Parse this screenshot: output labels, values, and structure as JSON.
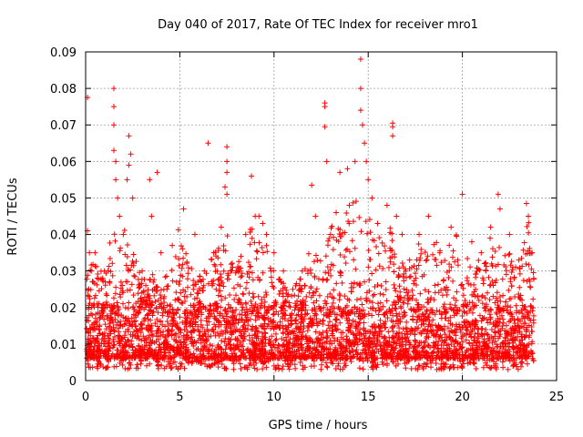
{
  "chart_data": {
    "type": "scatter",
    "title": "Day 040 of 2017, Rate Of TEC Index for receiver mro1",
    "xlabel": "GPS time / hours",
    "ylabel": "ROTI / TECUs",
    "xlim": [
      0,
      25
    ],
    "ylim": [
      0,
      0.09
    ],
    "xticks": [
      0,
      5,
      10,
      15,
      20,
      25
    ],
    "xtick_labels": [
      "0",
      "5",
      "10",
      "15",
      "20",
      "25"
    ],
    "yticks": [
      0,
      0.01,
      0.02,
      0.03,
      0.04,
      0.05,
      0.06,
      0.07,
      0.08,
      0.09
    ],
    "ytick_labels": [
      "0",
      "0.01",
      "0.02",
      "0.03",
      "0.04",
      "0.05",
      "0.06",
      "0.07",
      "0.08",
      "0.09"
    ],
    "grid": true,
    "marker": "+",
    "color": "#ff0000",
    "series": [
      {
        "name": "ROTI",
        "points": [
          [
            0.1,
            0.0775
          ],
          [
            0.1,
            0.041
          ],
          [
            0.2,
            0.035
          ],
          [
            0.3,
            0.03
          ],
          [
            0.4,
            0.027
          ],
          [
            1.5,
            0.08
          ],
          [
            1.5,
            0.075
          ],
          [
            1.5,
            0.07
          ],
          [
            1.5,
            0.063
          ],
          [
            1.6,
            0.06
          ],
          [
            1.6,
            0.055
          ],
          [
            1.7,
            0.05
          ],
          [
            1.8,
            0.045
          ],
          [
            2.3,
            0.067
          ],
          [
            2.4,
            0.062
          ],
          [
            2.3,
            0.059
          ],
          [
            2.2,
            0.055
          ],
          [
            2.5,
            0.05
          ],
          [
            3.4,
            0.055
          ],
          [
            3.5,
            0.045
          ],
          [
            3.8,
            0.057
          ],
          [
            6.5,
            0.065
          ],
          [
            7.5,
            0.064
          ],
          [
            7.5,
            0.06
          ],
          [
            7.5,
            0.057
          ],
          [
            7.4,
            0.053
          ],
          [
            7.5,
            0.051
          ],
          [
            8.8,
            0.056
          ],
          [
            9.2,
            0.045
          ],
          [
            9.4,
            0.043
          ],
          [
            12.0,
            0.0535
          ],
          [
            12.7,
            0.076
          ],
          [
            12.7,
            0.075
          ],
          [
            12.7,
            0.0695
          ],
          [
            12.8,
            0.06
          ],
          [
            13.5,
            0.057
          ],
          [
            13.9,
            0.058
          ],
          [
            14.3,
            0.06
          ],
          [
            14.6,
            0.088
          ],
          [
            14.6,
            0.08
          ],
          [
            14.6,
            0.074
          ],
          [
            14.7,
            0.07
          ],
          [
            14.8,
            0.065
          ],
          [
            14.9,
            0.06
          ],
          [
            15.0,
            0.055
          ],
          [
            15.2,
            0.05
          ],
          [
            16.3,
            0.0705
          ],
          [
            16.3,
            0.0695
          ],
          [
            16.3,
            0.067
          ],
          [
            16.0,
            0.048
          ],
          [
            16.5,
            0.045
          ],
          [
            20.0,
            0.051
          ],
          [
            21.9,
            0.051
          ],
          [
            22.0,
            0.047
          ],
          [
            23.4,
            0.0485
          ],
          [
            23.5,
            0.045
          ],
          [
            0.5,
            0.035
          ],
          [
            1.0,
            0.03
          ],
          [
            2.0,
            0.04
          ],
          [
            3.0,
            0.03
          ],
          [
            4.0,
            0.035
          ],
          [
            4.6,
            0.037
          ],
          [
            5.2,
            0.047
          ],
          [
            5.8,
            0.04
          ],
          [
            6.3,
            0.03
          ],
          [
            6.8,
            0.035
          ],
          [
            7.2,
            0.042
          ],
          [
            8.0,
            0.03
          ],
          [
            8.5,
            0.04
          ],
          [
            9.0,
            0.045
          ],
          [
            9.6,
            0.04
          ],
          [
            10.0,
            0.035
          ],
          [
            10.5,
            0.03
          ],
          [
            11.0,
            0.025
          ],
          [
            11.5,
            0.03
          ],
          [
            12.2,
            0.045
          ],
          [
            13.0,
            0.04
          ],
          [
            13.3,
            0.046
          ],
          [
            14.0,
            0.048
          ],
          [
            15.5,
            0.043
          ],
          [
            16.8,
            0.04
          ],
          [
            17.2,
            0.033
          ],
          [
            17.7,
            0.04
          ],
          [
            18.2,
            0.045
          ],
          [
            18.8,
            0.035
          ],
          [
            19.4,
            0.042
          ],
          [
            20.5,
            0.038
          ],
          [
            21.0,
            0.035
          ],
          [
            21.5,
            0.042
          ],
          [
            22.5,
            0.04
          ],
          [
            23.0,
            0.033
          ],
          [
            23.7,
            0.035
          ]
        ]
      }
    ],
    "dense_band": {
      "description": "dense cloud of points across the full time range",
      "x_range": [
        0.05,
        23.8
      ],
      "y_lower": 0.003,
      "y_typical_low": 0.006,
      "y_typical_high": 0.02,
      "hourly_peak_envelope": [
        [
          0,
          0.034
        ],
        [
          1,
          0.03
        ],
        [
          1.5,
          0.045
        ],
        [
          2,
          0.042
        ],
        [
          2.5,
          0.038
        ],
        [
          3,
          0.028
        ],
        [
          3.5,
          0.03
        ],
        [
          4,
          0.025
        ],
        [
          4.5,
          0.035
        ],
        [
          5,
          0.043
        ],
        [
          5.5,
          0.032
        ],
        [
          6,
          0.028
        ],
        [
          6.5,
          0.033
        ],
        [
          7,
          0.036
        ],
        [
          7.5,
          0.041
        ],
        [
          8,
          0.032
        ],
        [
          8.5,
          0.038
        ],
        [
          9,
          0.045
        ],
        [
          9.5,
          0.04
        ],
        [
          10,
          0.03
        ],
        [
          10.5,
          0.027
        ],
        [
          11,
          0.025
        ],
        [
          11.5,
          0.03
        ],
        [
          12,
          0.037
        ],
        [
          12.5,
          0.035
        ],
        [
          13,
          0.042
        ],
        [
          13.5,
          0.045
        ],
        [
          14,
          0.048
        ],
        [
          14.5,
          0.05
        ],
        [
          15,
          0.046
        ],
        [
          15.5,
          0.042
        ],
        [
          16,
          0.046
        ],
        [
          16.5,
          0.038
        ],
        [
          17,
          0.03
        ],
        [
          17.5,
          0.036
        ],
        [
          18,
          0.04
        ],
        [
          18.5,
          0.039
        ],
        [
          19,
          0.035
        ],
        [
          19.5,
          0.042
        ],
        [
          20,
          0.036
        ],
        [
          20.5,
          0.032
        ],
        [
          21,
          0.034
        ],
        [
          21.5,
          0.04
        ],
        [
          22,
          0.037
        ],
        [
          22.5,
          0.035
        ],
        [
          23,
          0.03
        ],
        [
          23.5,
          0.045
        ],
        [
          23.8,
          0.03
        ]
      ]
    }
  }
}
